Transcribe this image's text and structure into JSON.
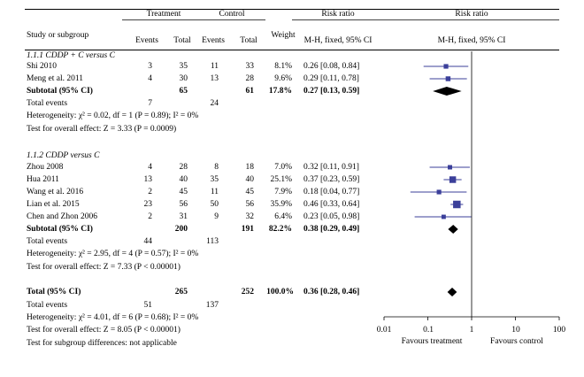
{
  "chart_data": {
    "type": "forest",
    "header": {
      "study_col": "Study or subgroup",
      "treatment": "Treatment",
      "control": "Control",
      "events": "Events",
      "total": "Total",
      "weight": "Weight",
      "risk_ratio": "Risk ratio",
      "method": "M-H, fixed, 95% CI"
    },
    "subgroups": [
      {
        "title": "1.1.1 CDDP + C versus C",
        "studies": [
          {
            "study": "Shi 2010",
            "t_events": "3",
            "t_total": "35",
            "c_events": "11",
            "c_total": "33",
            "weight": "8.1%",
            "rr_text": "0.26 [0.08, 0.84]",
            "rr": 0.26,
            "lo": 0.08,
            "hi": 0.84,
            "w": 8.1
          },
          {
            "study": "Meng et al. 2011",
            "t_events": "4",
            "t_total": "30",
            "c_events": "13",
            "c_total": "28",
            "weight": "9.6%",
            "rr_text": "0.29 [0.11, 0.78]",
            "rr": 0.29,
            "lo": 0.11,
            "hi": 0.78,
            "w": 9.6
          }
        ],
        "subtotal": {
          "label": "Subtotal (95% CI)",
          "t_total": "65",
          "c_total": "61",
          "weight": "17.8%",
          "rr_text": "0.27 [0.13, 0.59]",
          "rr": 0.27,
          "lo": 0.13,
          "hi": 0.59
        },
        "total_events_label": "Total events",
        "t_events": "7",
        "c_events": "24",
        "heterogeneity": "Heterogeneity: χ² = 0.02, df = 1 (P = 0.89); I² = 0%",
        "overall": "Test for overall effect: Z = 3.33 (P = 0.0009)"
      },
      {
        "title": "1.1.2 CDDP versus C",
        "studies": [
          {
            "study": "Zhou 2008",
            "t_events": "4",
            "t_total": "28",
            "c_events": "8",
            "c_total": "18",
            "weight": "7.0%",
            "rr_text": "0.32 [0.11, 0.91]",
            "rr": 0.32,
            "lo": 0.11,
            "hi": 0.91,
            "w": 7.0
          },
          {
            "study": "Hua 2011",
            "t_events": "13",
            "t_total": "40",
            "c_events": "35",
            "c_total": "40",
            "weight": "25.1%",
            "rr_text": "0.37 [0.23, 0.59]",
            "rr": 0.37,
            "lo": 0.23,
            "hi": 0.59,
            "w": 25.1
          },
          {
            "study": "Wang et al. 2016",
            "t_events": "2",
            "t_total": "45",
            "c_events": "11",
            "c_total": "45",
            "weight": "7.9%",
            "rr_text": "0.18 [0.04, 0.77]",
            "rr": 0.18,
            "lo": 0.04,
            "hi": 0.77,
            "w": 7.9
          },
          {
            "study": "Lian et al. 2015",
            "t_events": "23",
            "t_total": "56",
            "c_events": "50",
            "c_total": "56",
            "weight": "35.9%",
            "rr_text": "0.46 [0.33, 0.64]",
            "rr": 0.46,
            "lo": 0.33,
            "hi": 0.64,
            "w": 35.9
          },
          {
            "study": "Chen and Zhon 2006",
            "t_events": "2",
            "t_total": "31",
            "c_events": "9",
            "c_total": "32",
            "weight": "6.4%",
            "rr_text": "0.23 [0.05, 0.98]",
            "rr": 0.23,
            "lo": 0.05,
            "hi": 0.98,
            "w": 6.4
          }
        ],
        "subtotal": {
          "label": "Subtotal (95% CI)",
          "t_total": "200",
          "c_total": "191",
          "weight": "82.2%",
          "rr_text": "0.38 [0.29, 0.49]",
          "rr": 0.38,
          "lo": 0.29,
          "hi": 0.49
        },
        "total_events_label": "Total events",
        "t_events": "44",
        "c_events": "113",
        "heterogeneity": "Heterogeneity: χ² = 2.95, df = 4 (P = 0.57); I² = 0%",
        "overall": "Test for overall effect: Z = 7.33 (P < 0.00001)"
      }
    ],
    "total": {
      "label": "Total (95% CI)",
      "t_total": "265",
      "c_total": "252",
      "weight": "100.0%",
      "rr_text": "0.36 [0.28, 0.46]",
      "rr": 0.36,
      "lo": 0.28,
      "hi": 0.46,
      "total_events_label": "Total events",
      "t_events": "51",
      "c_events": "137",
      "heterogeneity": "Heterogeneity: χ² = 4.01, df = 6 (P = 0.68); I² = 0%",
      "overall": "Test for overall effect: Z = 8.05 (P < 0.00001)",
      "subgroup_diff": "Test for subgroup differences: not applicable"
    },
    "axis": {
      "scale": "log",
      "range": [
        0.01,
        100
      ],
      "ticks": [
        "0.01",
        "0.1",
        "1",
        "10",
        "100"
      ],
      "left_label": "Favours treatment",
      "right_label": "Favours control"
    },
    "colors": {
      "study_marker": "#3b3f9a",
      "text": "#000000"
    }
  }
}
